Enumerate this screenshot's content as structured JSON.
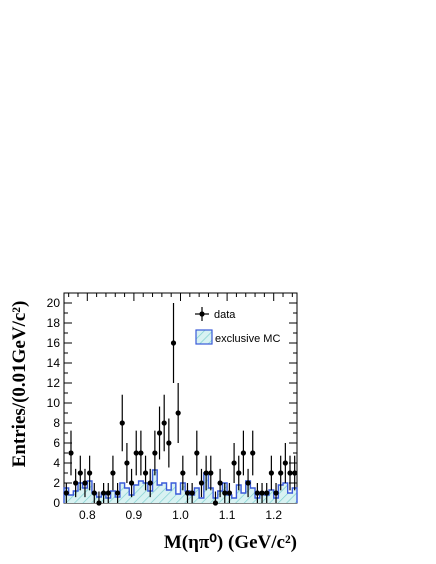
{
  "chart_data": {
    "type": "scatter",
    "xlabel": "M(ηπ⁰) (GeV/c²)",
    "ylabel": "Entries/(0.01GeV/c²)",
    "xlim": [
      0.75,
      1.25
    ],
    "ylim": [
      0,
      21
    ],
    "xticks": [
      "0.8",
      "0.9",
      "1.0",
      "1.1",
      "1.2"
    ],
    "yticks": [
      "0",
      "2",
      "4",
      "6",
      "8",
      "10",
      "12",
      "14",
      "16",
      "18",
      "20"
    ],
    "bin_width": 0.01,
    "series": [
      {
        "name": "data",
        "style": "points-with-error-bars",
        "x": [
          0.755,
          0.765,
          0.775,
          0.785,
          0.795,
          0.805,
          0.815,
          0.825,
          0.835,
          0.845,
          0.855,
          0.865,
          0.875,
          0.885,
          0.895,
          0.905,
          0.915,
          0.925,
          0.935,
          0.945,
          0.955,
          0.965,
          0.975,
          0.985,
          0.995,
          1.005,
          1.015,
          1.025,
          1.035,
          1.045,
          1.055,
          1.065,
          1.075,
          1.085,
          1.095,
          1.105,
          1.115,
          1.125,
          1.135,
          1.145,
          1.155,
          1.165,
          1.175,
          1.185,
          1.195,
          1.205,
          1.215,
          1.225,
          1.235,
          1.245
        ],
        "y": [
          1,
          5,
          2,
          3,
          2,
          3,
          1,
          0,
          1,
          1,
          3,
          1,
          8,
          4,
          2,
          5,
          5,
          3,
          2,
          5,
          7,
          8,
          6,
          16,
          9,
          3,
          1,
          1,
          5,
          2,
          3,
          3,
          0,
          2,
          1,
          1,
          4,
          3,
          5,
          2,
          5,
          1,
          1,
          1,
          3,
          1,
          3,
          4,
          3,
          3
        ]
      },
      {
        "name": "exclusive MC",
        "style": "hatched-histogram",
        "x": [
          0.755,
          0.765,
          0.775,
          0.785,
          0.795,
          0.805,
          0.815,
          0.825,
          0.835,
          0.845,
          0.855,
          0.865,
          0.875,
          0.885,
          0.895,
          0.905,
          0.915,
          0.925,
          0.935,
          0.945,
          0.955,
          0.965,
          0.975,
          0.985,
          0.995,
          1.005,
          1.015,
          1.025,
          1.035,
          1.045,
          1.055,
          1.065,
          1.075,
          1.085,
          1.095,
          1.105,
          1.115,
          1.125,
          1.135,
          1.145,
          1.155,
          1.165,
          1.175,
          1.185,
          1.195,
          1.205,
          1.215,
          1.225,
          1.235,
          1.245
        ],
        "y": [
          1.5,
          0.8,
          1.2,
          2.0,
          1.5,
          2.2,
          1.0,
          0.6,
          1.0,
          0.5,
          1.2,
          0.6,
          2.0,
          1.5,
          0.8,
          1.8,
          2.2,
          2.0,
          1.2,
          3.3,
          1.8,
          2.0,
          1.3,
          2.0,
          0.9,
          2.0,
          1.2,
          0.8,
          1.5,
          0.5,
          3.0,
          1.5,
          0.5,
          1.2,
          2.0,
          0.8,
          0.5,
          1.8,
          1.0,
          2.2,
          1.5,
          0.5,
          1.0,
          0.8,
          1.3,
          0.5,
          1.8,
          2.0,
          1.0,
          1.5
        ]
      }
    ],
    "legend": {
      "position": "top-right"
    }
  }
}
